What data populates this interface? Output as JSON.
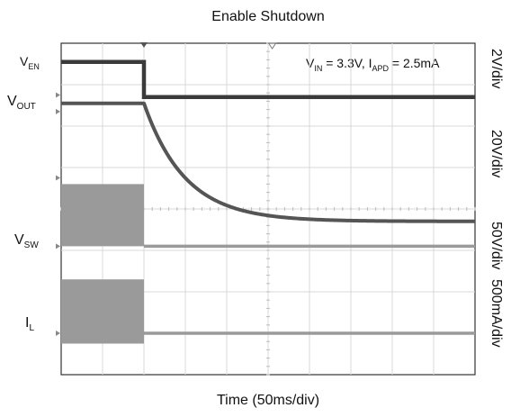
{
  "chart_data": {
    "type": "line",
    "title": "Enable Shutdown",
    "xlabel": "Time (50ms/div)",
    "annotation": {
      "prefix_v": "V",
      "sub_in": "IN",
      "mid": " = 3.3V, I",
      "sub_apd": "APD",
      "suffix": " = 2.5mA"
    },
    "x_divisions": 10,
    "y_divisions": 8,
    "grid": true,
    "vertical_scales": [
      "2V/div",
      "20V/div",
      "50V/div",
      "500mA/div"
    ],
    "series": [
      {
        "name_main": "V",
        "name_sub": "EN",
        "marker": "T",
        "trace": "step_down",
        "before_level_div": 7.55,
        "after_level_div": 6.7
      },
      {
        "name_main": "V",
        "name_sub": "OUT",
        "marker": "1",
        "trace": "exponential_decay",
        "start_level_div": 6.55,
        "end_level_div": 3.7,
        "time_constant_div": 1.0
      },
      {
        "name_main": "V",
        "name_sub": "SW",
        "marker": "2",
        "trace": "switching_then_flat",
        "band_top_div": 4.6,
        "band_bottom_div": 3.1,
        "after_level_div": 3.1
      },
      {
        "name_main": "I",
        "name_sub": "L",
        "marker": "3",
        "trace": "switching_then_flat",
        "band_top_div": 2.3,
        "band_bottom_div": 0.75,
        "after_level_div": 1.0
      }
    ],
    "event_time_div": 2.0,
    "trigger_marker_time_div": 5.1
  }
}
